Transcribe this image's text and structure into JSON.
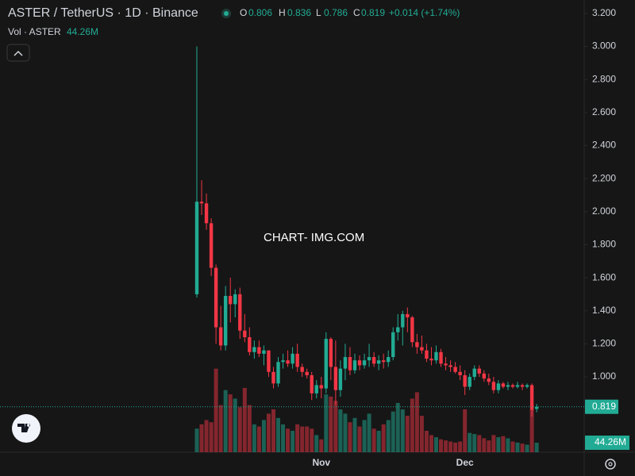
{
  "chart_data": {
    "type": "candlestick",
    "title": "ASTER / TetherUS · 1D · Binance",
    "legend": {
      "o_label": "O",
      "o": "0.806",
      "h_label": "H",
      "h": "0.836",
      "l_label": "L",
      "l": "0.786",
      "c_label": "C",
      "c": "0.819",
      "change": "+0.014 (+1.74%)"
    },
    "volume_title": "Vol · ASTER",
    "volume_value": "44.26M",
    "watermark": "CHART- IMG.COM",
    "price_label": "0.819",
    "volume_label": "44.26M",
    "up_color": "#22ab94",
    "down_color": "#f23645",
    "categories": [
      null,
      null,
      null,
      null,
      null,
      null,
      null,
      null,
      null,
      null,
      null,
      null,
      null,
      null,
      null,
      null,
      null,
      null,
      null,
      null,
      null,
      null,
      null,
      null,
      null,
      null,
      "Nov",
      null,
      null,
      null,
      null,
      null,
      null,
      null,
      null,
      null,
      null,
      null,
      null,
      null,
      null,
      null,
      null,
      null,
      null,
      null,
      null,
      null,
      null,
      null,
      null,
      null,
      null,
      null,
      null,
      null,
      "Dec",
      null,
      null,
      null,
      null,
      null,
      null,
      null,
      null,
      null,
      null,
      null,
      null,
      null,
      null,
      null
    ],
    "open": [
      1.5,
      2.06,
      2.05,
      1.93,
      1.66,
      1.3,
      1.19,
      1.49,
      1.44,
      1.5,
      1.28,
      1.24,
      1.15,
      1.18,
      1.14,
      1.16,
      1.03,
      0.96,
      1.09,
      1.1,
      1.08,
      1.14,
      1.06,
      1.03,
      1.01,
      0.9,
      0.95,
      0.93,
      1.23,
      1.06,
      0.92,
      1.05,
      1.12,
      1.04,
      1.1,
      1.07,
      1.1,
      1.12,
      1.08,
      1.1,
      1.09,
      1.12,
      1.27,
      1.3,
      1.38,
      1.36,
      1.21,
      1.18,
      1.16,
      1.11,
      1.1,
      1.15,
      1.08,
      1.07,
      1.06,
      1.03,
      1.01,
      0.94,
      1.0,
      1.05,
      1.02,
      0.99,
      0.97,
      0.92,
      0.96,
      0.94,
      0.95,
      0.94,
      0.95,
      0.94,
      0.95,
      0.806
    ],
    "high": [
      3.0,
      2.19,
      2.11,
      1.96,
      1.68,
      1.43,
      1.55,
      1.6,
      1.53,
      1.54,
      1.38,
      1.3,
      1.22,
      1.22,
      1.19,
      1.16,
      1.06,
      1.12,
      1.14,
      1.16,
      1.18,
      1.2,
      1.08,
      1.05,
      1.03,
      0.98,
      1.0,
      1.27,
      1.24,
      1.22,
      1.1,
      1.2,
      1.18,
      1.14,
      1.13,
      1.14,
      1.2,
      1.15,
      1.13,
      1.14,
      1.16,
      1.3,
      1.38,
      1.4,
      1.42,
      1.37,
      1.26,
      1.25,
      1.2,
      1.18,
      1.19,
      1.17,
      1.12,
      1.1,
      1.09,
      1.07,
      1.04,
      1.02,
      1.07,
      1.07,
      1.04,
      1.02,
      1.0,
      0.98,
      0.97,
      0.97,
      0.96,
      0.97,
      0.96,
      0.96,
      0.96,
      0.836
    ],
    "low": [
      1.48,
      1.98,
      1.89,
      1.61,
      1.2,
      1.16,
      1.16,
      1.33,
      1.36,
      1.23,
      1.21,
      1.13,
      1.11,
      1.12,
      1.07,
      1.0,
      0.93,
      0.94,
      1.05,
      1.06,
      1.05,
      1.03,
      1.0,
      0.99,
      0.86,
      0.87,
      0.87,
      0.9,
      0.98,
      0.83,
      0.88,
      0.98,
      1.01,
      1.02,
      1.04,
      1.05,
      1.06,
      1.06,
      1.04,
      1.05,
      1.06,
      1.1,
      1.22,
      1.19,
      1.27,
      1.18,
      1.14,
      1.14,
      1.09,
      1.07,
      1.08,
      1.06,
      1.04,
      1.03,
      1.02,
      0.98,
      0.89,
      0.92,
      0.98,
      1.0,
      0.97,
      0.95,
      0.9,
      0.9,
      0.93,
      0.92,
      0.93,
      0.93,
      0.92,
      0.93,
      0.76,
      0.786
    ],
    "close": [
      2.06,
      2.05,
      1.93,
      1.66,
      1.3,
      1.19,
      1.49,
      1.44,
      1.5,
      1.28,
      1.24,
      1.15,
      1.18,
      1.14,
      1.16,
      1.03,
      0.96,
      1.09,
      1.1,
      1.08,
      1.14,
      1.06,
      1.03,
      1.01,
      0.9,
      0.95,
      0.93,
      1.23,
      1.06,
      0.92,
      1.05,
      1.12,
      1.04,
      1.1,
      1.07,
      1.1,
      1.12,
      1.08,
      1.1,
      1.09,
      1.12,
      1.27,
      1.3,
      1.38,
      1.36,
      1.21,
      1.18,
      1.16,
      1.11,
      1.1,
      1.15,
      1.08,
      1.07,
      1.06,
      1.03,
      1.01,
      0.94,
      1.0,
      1.05,
      1.02,
      0.99,
      0.97,
      0.92,
      0.96,
      0.94,
      0.95,
      0.94,
      0.95,
      0.94,
      0.95,
      0.8,
      0.819
    ],
    "volume": [
      110,
      130,
      150,
      140,
      390,
      220,
      290,
      270,
      250,
      210,
      300,
      220,
      130,
      120,
      150,
      180,
      200,
      160,
      130,
      110,
      100,
      130,
      120,
      120,
      110,
      80,
      60,
      270,
      260,
      240,
      200,
      180,
      140,
      160,
      120,
      150,
      180,
      110,
      100,
      130,
      150,
      190,
      230,
      200,
      170,
      250,
      280,
      170,
      100,
      80,
      70,
      60,
      55,
      50,
      45,
      50,
      200,
      90,
      85,
      80,
      65,
      55,
      80,
      70,
      75,
      65,
      50,
      45,
      40,
      35,
      200,
      44.26
    ],
    "ylim": [
      0.544,
      3.281
    ],
    "volume_lim": [
      0,
      400
    ],
    "yticks": [
      {
        "value": 1.0,
        "label": "1.000"
      },
      {
        "value": 1.2,
        "label": "1.200"
      },
      {
        "value": 1.4,
        "label": "1.400"
      },
      {
        "value": 1.6,
        "label": "1.600"
      },
      {
        "value": 1.8,
        "label": "1.800"
      },
      {
        "value": 2.0,
        "label": "2.000"
      },
      {
        "value": 2.2,
        "label": "2.200"
      },
      {
        "value": 2.4,
        "label": "2.400"
      },
      {
        "value": 2.6,
        "label": "2.600"
      },
      {
        "value": 2.8,
        "label": "2.800"
      },
      {
        "value": 3.0,
        "label": "3.000"
      },
      {
        "value": 3.2,
        "label": "3.200"
      }
    ]
  }
}
